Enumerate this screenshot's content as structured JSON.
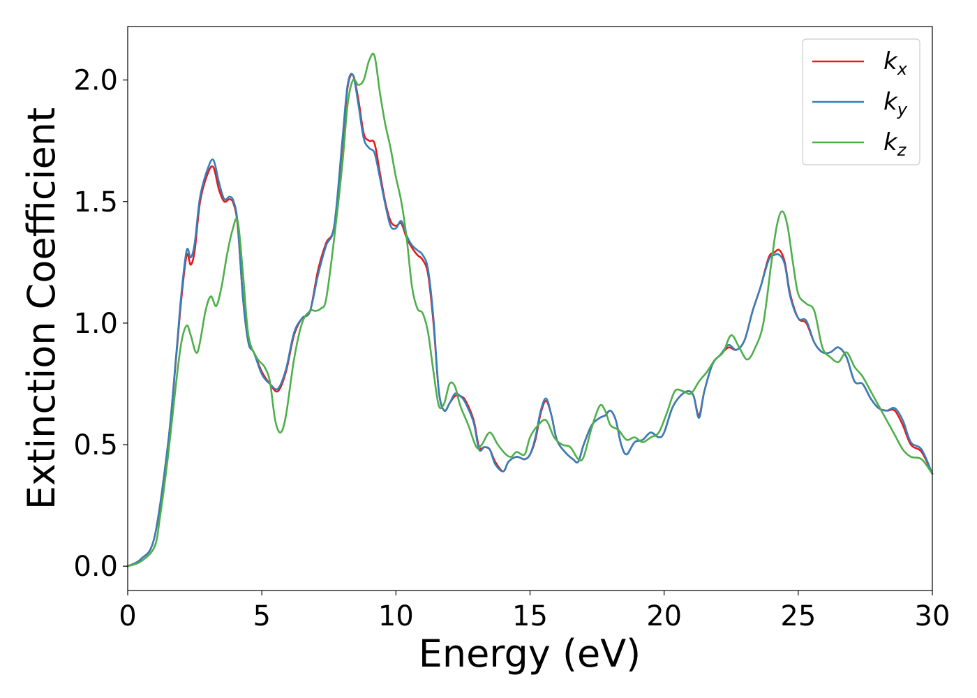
{
  "chart_data": {
    "type": "line",
    "title": "",
    "xlabel": "Energy (eV)",
    "ylabel": "Extinction Coefficient",
    "xlim": [
      0,
      30
    ],
    "ylim": [
      -0.1,
      2.22
    ],
    "grid": false,
    "legend_position": "top-right",
    "xticks": [
      "0",
      "5",
      "10",
      "15",
      "20",
      "25",
      "30"
    ],
    "xtick_values": [
      0,
      5,
      10,
      15,
      20,
      25,
      30
    ],
    "yticks": [
      "0.0",
      "0.5",
      "1.0",
      "1.5",
      "2.0"
    ],
    "ytick_values": [
      0.0,
      0.5,
      1.0,
      1.5,
      2.0
    ],
    "series": [
      {
        "name_base": "k",
        "name_sub": "x",
        "color": "#e41a1c",
        "x": [
          0,
          0.5,
          1.0,
          1.5,
          1.8,
          2.0,
          2.2,
          2.35,
          2.5,
          2.7,
          3.0,
          3.2,
          3.4,
          3.6,
          3.8,
          3.95,
          4.1,
          4.3,
          4.5,
          4.7,
          5.0,
          5.3,
          5.6,
          5.9,
          6.2,
          6.5,
          6.8,
          7.1,
          7.4,
          7.7,
          8.0,
          8.2,
          8.4,
          8.6,
          8.8,
          9.0,
          9.2,
          9.4,
          9.6,
          9.8,
          10.0,
          10.2,
          10.4,
          10.6,
          10.8,
          11.0,
          11.2,
          11.4,
          11.6,
          11.8,
          12.0,
          12.2,
          12.4,
          12.6,
          12.9,
          13.1,
          13.3,
          13.5,
          13.7,
          14.0,
          14.2,
          14.5,
          14.8,
          15.0,
          15.2,
          15.4,
          15.6,
          15.8,
          16.0,
          16.3,
          16.6,
          16.8,
          17.0,
          17.3,
          17.6,
          17.8,
          18.0,
          18.2,
          18.4,
          18.6,
          18.9,
          19.2,
          19.5,
          19.8,
          20.0,
          20.3,
          20.6,
          20.9,
          21.1,
          21.3,
          21.5,
          21.8,
          22.1,
          22.4,
          22.7,
          23.0,
          23.3,
          23.6,
          23.9,
          24.1,
          24.3,
          24.5,
          24.7,
          25.0,
          25.3,
          25.6,
          25.9,
          26.2,
          26.5,
          26.8,
          27.1,
          27.4,
          27.7,
          28.0,
          28.3,
          28.6,
          28.9,
          29.2,
          29.6,
          30.0
        ],
        "y": [
          0.0,
          0.03,
          0.12,
          0.5,
          0.85,
          1.1,
          1.28,
          1.24,
          1.3,
          1.5,
          1.62,
          1.64,
          1.55,
          1.5,
          1.51,
          1.49,
          1.4,
          1.1,
          0.92,
          0.88,
          0.8,
          0.75,
          0.72,
          0.8,
          0.95,
          1.02,
          1.05,
          1.22,
          1.33,
          1.4,
          1.73,
          1.97,
          2.02,
          1.92,
          1.78,
          1.75,
          1.74,
          1.62,
          1.5,
          1.42,
          1.4,
          1.41,
          1.35,
          1.31,
          1.28,
          1.26,
          1.2,
          1.0,
          0.72,
          0.64,
          0.67,
          0.7,
          0.7,
          0.68,
          0.6,
          0.49,
          0.49,
          0.48,
          0.43,
          0.39,
          0.43,
          0.45,
          0.44,
          0.46,
          0.52,
          0.63,
          0.68,
          0.62,
          0.52,
          0.47,
          0.44,
          0.43,
          0.5,
          0.58,
          0.61,
          0.62,
          0.64,
          0.6,
          0.5,
          0.46,
          0.51,
          0.52,
          0.55,
          0.53,
          0.55,
          0.65,
          0.7,
          0.72,
          0.7,
          0.62,
          0.72,
          0.83,
          0.87,
          0.9,
          0.89,
          0.93,
          1.05,
          1.15,
          1.27,
          1.29,
          1.3,
          1.25,
          1.12,
          1.02,
          1.0,
          0.92,
          0.88,
          0.88,
          0.9,
          0.86,
          0.76,
          0.75,
          0.69,
          0.65,
          0.64,
          0.64,
          0.58,
          0.5,
          0.47,
          0.38
        ]
      },
      {
        "name_base": "k",
        "name_sub": "y",
        "color": "#377eb8",
        "x": [
          0,
          0.5,
          1.0,
          1.5,
          1.8,
          2.0,
          2.2,
          2.35,
          2.5,
          2.7,
          3.0,
          3.2,
          3.4,
          3.6,
          3.8,
          3.95,
          4.1,
          4.3,
          4.5,
          4.7,
          5.0,
          5.3,
          5.6,
          5.9,
          6.2,
          6.5,
          6.8,
          7.1,
          7.4,
          7.7,
          8.0,
          8.2,
          8.4,
          8.6,
          8.8,
          9.0,
          9.2,
          9.4,
          9.6,
          9.8,
          10.0,
          10.2,
          10.4,
          10.6,
          10.8,
          11.0,
          11.2,
          11.4,
          11.6,
          11.8,
          12.0,
          12.2,
          12.4,
          12.6,
          12.9,
          13.1,
          13.3,
          13.5,
          13.7,
          14.0,
          14.2,
          14.5,
          14.8,
          15.0,
          15.2,
          15.4,
          15.6,
          15.8,
          16.0,
          16.3,
          16.6,
          16.8,
          17.0,
          17.3,
          17.6,
          17.8,
          18.0,
          18.2,
          18.4,
          18.6,
          18.9,
          19.2,
          19.5,
          19.8,
          20.0,
          20.3,
          20.6,
          20.9,
          21.1,
          21.3,
          21.5,
          21.8,
          22.1,
          22.4,
          22.7,
          23.0,
          23.3,
          23.6,
          23.9,
          24.1,
          24.3,
          24.5,
          24.7,
          25.0,
          25.3,
          25.6,
          25.9,
          26.2,
          26.5,
          26.8,
          27.1,
          27.4,
          27.7,
          28.0,
          28.3,
          28.6,
          28.9,
          29.2,
          29.6,
          30.0
        ],
        "y": [
          0.0,
          0.03,
          0.12,
          0.5,
          0.86,
          1.12,
          1.3,
          1.27,
          1.33,
          1.52,
          1.64,
          1.67,
          1.58,
          1.51,
          1.52,
          1.5,
          1.41,
          1.1,
          0.92,
          0.88,
          0.79,
          0.75,
          0.73,
          0.81,
          0.96,
          1.02,
          1.05,
          1.2,
          1.32,
          1.4,
          1.75,
          1.98,
          2.02,
          1.9,
          1.76,
          1.72,
          1.7,
          1.6,
          1.49,
          1.4,
          1.39,
          1.42,
          1.36,
          1.32,
          1.3,
          1.28,
          1.22,
          1.02,
          0.72,
          0.64,
          0.67,
          0.71,
          0.7,
          0.67,
          0.59,
          0.48,
          0.49,
          0.48,
          0.42,
          0.39,
          0.43,
          0.45,
          0.44,
          0.46,
          0.53,
          0.64,
          0.69,
          0.62,
          0.52,
          0.47,
          0.44,
          0.43,
          0.5,
          0.58,
          0.61,
          0.62,
          0.64,
          0.6,
          0.5,
          0.46,
          0.51,
          0.52,
          0.55,
          0.53,
          0.55,
          0.65,
          0.7,
          0.72,
          0.7,
          0.61,
          0.72,
          0.83,
          0.87,
          0.91,
          0.89,
          0.93,
          1.05,
          1.15,
          1.26,
          1.28,
          1.28,
          1.24,
          1.11,
          1.02,
          1.01,
          0.92,
          0.88,
          0.88,
          0.9,
          0.86,
          0.76,
          0.75,
          0.69,
          0.65,
          0.64,
          0.65,
          0.6,
          0.51,
          0.48,
          0.38
        ]
      },
      {
        "name_base": "k",
        "name_sub": "z",
        "color": "#4daf4a",
        "x": [
          0,
          0.5,
          1.0,
          1.2,
          1.5,
          1.8,
          2.0,
          2.2,
          2.35,
          2.6,
          2.9,
          3.1,
          3.3,
          3.5,
          3.7,
          3.9,
          4.1,
          4.3,
          4.5,
          4.8,
          5.1,
          5.3,
          5.5,
          5.7,
          5.9,
          6.2,
          6.5,
          6.8,
          7.0,
          7.2,
          7.4,
          7.7,
          8.0,
          8.2,
          8.4,
          8.6,
          8.8,
          9.0,
          9.2,
          9.4,
          9.6,
          9.8,
          10.0,
          10.2,
          10.4,
          10.6,
          10.8,
          11.0,
          11.2,
          11.4,
          11.6,
          11.8,
          12.0,
          12.2,
          12.4,
          12.7,
          13.0,
          13.2,
          13.5,
          13.8,
          14.1,
          14.3,
          14.5,
          14.8,
          15.0,
          15.3,
          15.6,
          15.9,
          16.2,
          16.5,
          16.8,
          17.0,
          17.3,
          17.6,
          17.8,
          18.0,
          18.3,
          18.6,
          18.9,
          19.2,
          19.5,
          19.8,
          20.1,
          20.4,
          20.7,
          21.0,
          21.3,
          21.6,
          21.9,
          22.2,
          22.5,
          22.8,
          23.1,
          23.4,
          23.7,
          24.0,
          24.2,
          24.4,
          24.6,
          24.8,
          25.0,
          25.3,
          25.6,
          25.9,
          26.2,
          26.5,
          26.8,
          27.1,
          27.4,
          27.7,
          28.0,
          28.3,
          28.6,
          28.9,
          29.2,
          29.6,
          30.0
        ],
        "y": [
          0.0,
          0.02,
          0.08,
          0.2,
          0.45,
          0.75,
          0.92,
          0.99,
          0.95,
          0.88,
          1.05,
          1.11,
          1.07,
          1.15,
          1.28,
          1.38,
          1.42,
          1.2,
          0.95,
          0.86,
          0.82,
          0.76,
          0.6,
          0.55,
          0.62,
          0.85,
          1.0,
          1.05,
          1.05,
          1.06,
          1.1,
          1.35,
          1.65,
          1.9,
          2.0,
          1.98,
          2.0,
          2.08,
          2.1,
          1.95,
          1.82,
          1.72,
          1.6,
          1.5,
          1.35,
          1.15,
          1.06,
          1.04,
          0.96,
          0.8,
          0.66,
          0.67,
          0.75,
          0.74,
          0.66,
          0.58,
          0.49,
          0.5,
          0.55,
          0.5,
          0.46,
          0.45,
          0.47,
          0.46,
          0.53,
          0.58,
          0.6,
          0.53,
          0.5,
          0.49,
          0.44,
          0.45,
          0.57,
          0.66,
          0.64,
          0.58,
          0.56,
          0.52,
          0.53,
          0.51,
          0.53,
          0.55,
          0.63,
          0.72,
          0.72,
          0.71,
          0.76,
          0.8,
          0.85,
          0.88,
          0.95,
          0.9,
          0.85,
          0.9,
          1.0,
          1.25,
          1.4,
          1.46,
          1.4,
          1.25,
          1.12,
          1.08,
          1.05,
          0.9,
          0.86,
          0.84,
          0.88,
          0.82,
          0.78,
          0.72,
          0.66,
          0.6,
          0.54,
          0.48,
          0.45,
          0.44,
          0.38
        ]
      }
    ]
  }
}
